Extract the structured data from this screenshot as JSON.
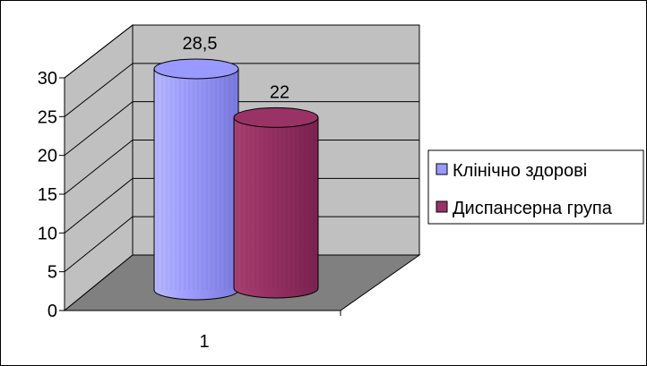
{
  "chart_data": {
    "type": "bar",
    "style": "3d-cylinder",
    "categories": [
      "1"
    ],
    "series": [
      {
        "name": "Клінічно здорові",
        "values": [
          28.5
        ],
        "color": "#9999ff",
        "data_label": "28,5"
      },
      {
        "name": "Диспансерна група",
        "values": [
          22
        ],
        "color": "#993366",
        "data_label": "22"
      }
    ],
    "ylim": [
      0,
      30
    ],
    "yticks": [
      "0",
      "5",
      "10",
      "15",
      "20",
      "25",
      "30"
    ],
    "grid": true,
    "legend_position": "right",
    "colors": {
      "wall": "#c0c0c0",
      "floor": "#808080",
      "gridline": "#000000"
    }
  }
}
